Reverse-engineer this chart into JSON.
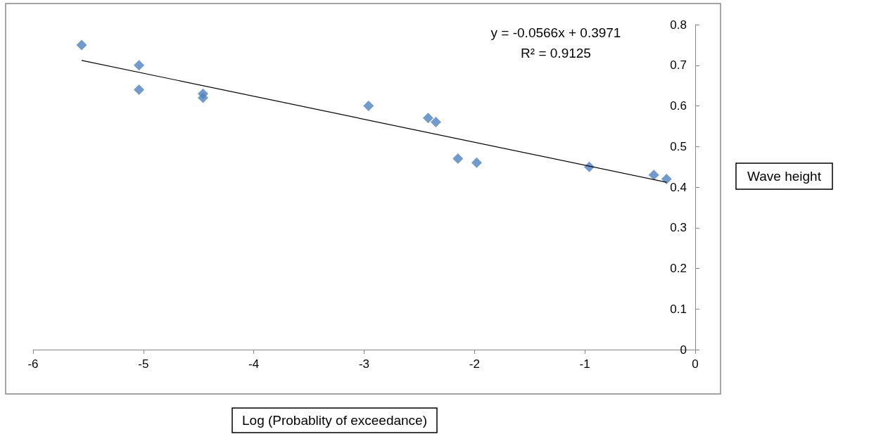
{
  "chart_data": {
    "type": "scatter",
    "xlabel": "Log (Probablity of exceedance)",
    "ylabel": "Wave height",
    "xlim": [
      -6,
      0
    ],
    "xticks": [
      -6,
      -5,
      -4,
      -3,
      -2,
      -1,
      0
    ],
    "ylim": [
      0,
      0.8
    ],
    "yticks": [
      0,
      0.1,
      0.2,
      0.3,
      0.4,
      0.5,
      0.6,
      0.7,
      0.8
    ],
    "annotations": [
      "y = -0.0566x + 0.3971",
      "R² = 0.9125"
    ],
    "series": [
      {
        "type": "scatter",
        "marker": "diamond",
        "color": "#4f81bd",
        "x": [
          -5.56,
          -5.04,
          -5.04,
          -4.46,
          -4.46,
          -2.96,
          -2.42,
          -2.35,
          -2.15,
          -1.98,
          -0.96,
          -0.375,
          -0.26
        ],
        "values": [
          0.75,
          0.7,
          0.64,
          0.63,
          0.62,
          0.6,
          0.57,
          0.56,
          0.47,
          0.46,
          0.45,
          0.43,
          0.42
        ]
      },
      {
        "type": "line",
        "marker": "none",
        "line_style": "solid",
        "color": "#000000",
        "x": [
          -5.56,
          -0.26
        ],
        "values": [
          0.712,
          0.412
        ]
      }
    ]
  }
}
